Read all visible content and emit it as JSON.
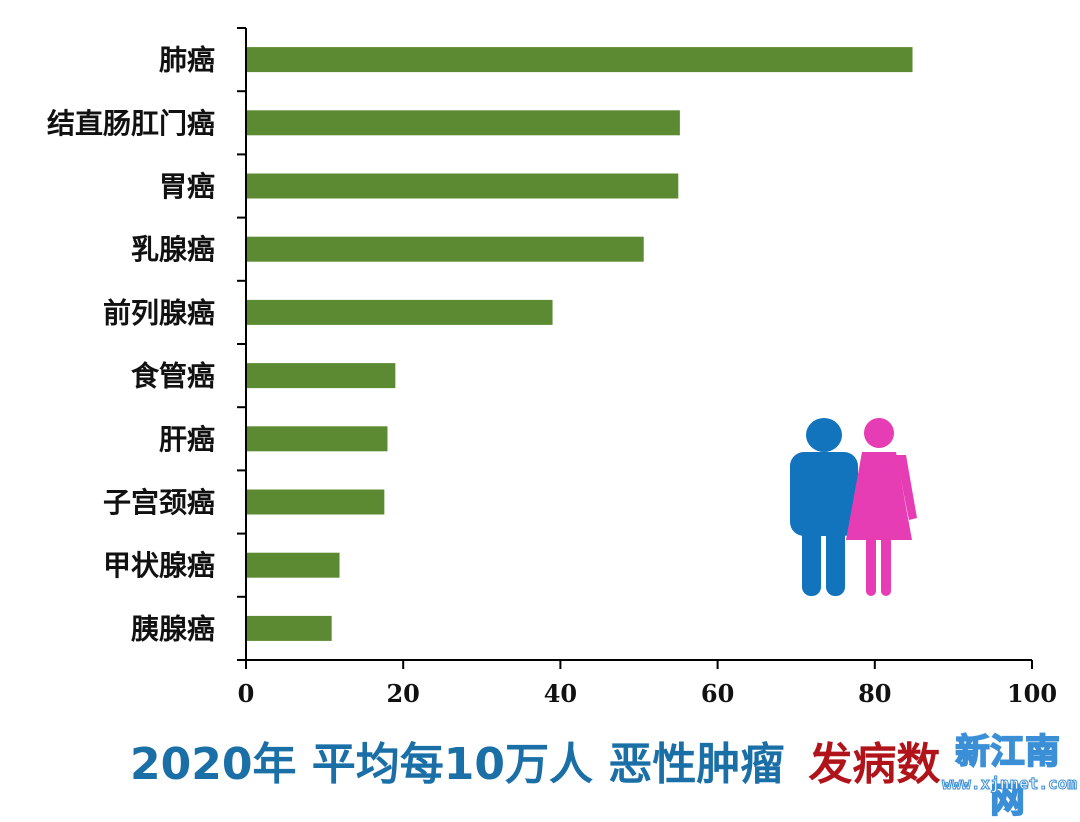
{
  "chart_data": {
    "type": "bar",
    "orientation": "horizontal",
    "categories": [
      "肺癌",
      "结直肠肛门癌",
      "胃癌",
      "乳腺癌",
      "前列腺癌",
      "食管癌",
      "肝癌",
      "子宫颈癌",
      "甲状腺癌",
      "胰腺癌"
    ],
    "values": [
      84.8,
      55.2,
      55.0,
      50.6,
      39.0,
      19.0,
      18.0,
      17.6,
      11.9,
      10.9
    ],
    "xticks": [
      0,
      20,
      40,
      60,
      80,
      100
    ],
    "xlim": [
      0,
      100
    ],
    "bar_color": "#5b8a32",
    "grid": false,
    "title": "2020年 平均每10万人 恶性肿瘤",
    "title_accent": "发病数"
  },
  "colors": {
    "title_main": "#1a6fa6",
    "title_accent": "#b0141a",
    "male_icon": "#1374be",
    "female_icon": "#e63cb4"
  },
  "icons": [
    "male-figure-icon",
    "female-figure-icon"
  ],
  "watermark": {
    "name": "新江南网",
    "url": "www.xjnnet.com"
  }
}
